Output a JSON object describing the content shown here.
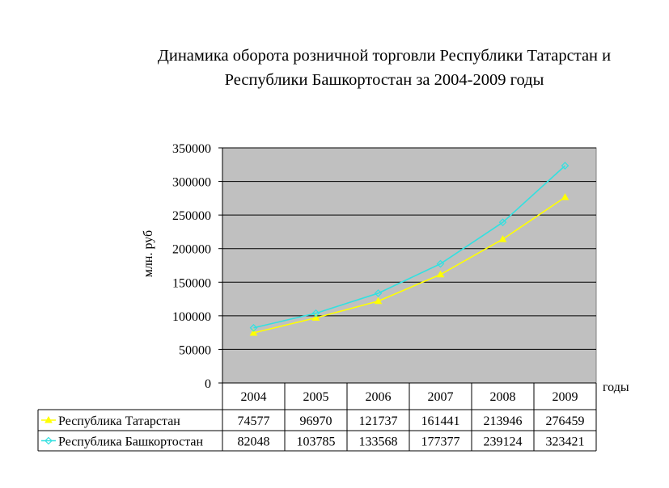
{
  "chart_data": {
    "type": "line",
    "title": "Динамика оборота розничной торговли Республики Татарстан и Республики Башкортостан за 2004-2009 годы",
    "title_lines": [
      "Динамика оборота розничной торговли Республики Татарстан и",
      "Республики Башкортостан за 2004-2009 годы"
    ],
    "xlabel": "годы",
    "ylabel": "млн. руб",
    "categories": [
      "2004",
      "2005",
      "2006",
      "2007",
      "2008",
      "2009"
    ],
    "ylim": [
      0,
      350000
    ],
    "yticks": [
      0,
      50000,
      100000,
      150000,
      200000,
      250000,
      300000,
      350000
    ],
    "grid": true,
    "legend": "data-table",
    "plot_background": "#c0c0c0",
    "series": [
      {
        "name": "Республика Татарстан",
        "color": "#ffff00",
        "marker": "triangle",
        "values": [
          74577,
          96970,
          121737,
          161441,
          213946,
          276459
        ]
      },
      {
        "name": "Республика Башкортостан",
        "color": "#33e0e0",
        "marker": "diamond",
        "values": [
          82048,
          103785,
          133568,
          177377,
          239124,
          323421
        ]
      }
    ]
  }
}
